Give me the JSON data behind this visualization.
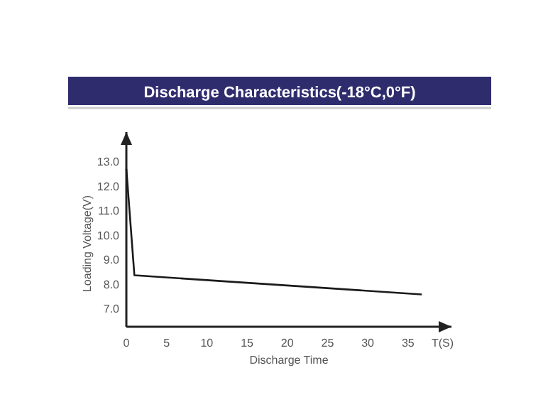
{
  "chart_data": {
    "type": "line",
    "title": "Discharge Characteristics(-18°C,0°F)",
    "xlabel": "Discharge Time",
    "ylabel": "Loading Voltage(V)",
    "annotations": [
      "T(S)"
    ],
    "x": [
      0,
      1,
      36.7
    ],
    "series": [
      {
        "color": "#1a1a1a",
        "values": [
          12.7,
          8.36,
          7.58
        ]
      }
    ],
    "xlim": [
      0,
      40.4
    ],
    "xticks": [
      0,
      5,
      10,
      15,
      20,
      25,
      30,
      35
    ],
    "ylim": [
      6.26,
      14.2
    ],
    "yticks": [
      {
        "value": 7,
        "label": "7.0"
      },
      {
        "value": 8,
        "label": "8.0"
      },
      {
        "value": 9,
        "label": "9.0"
      },
      {
        "value": 10,
        "label": "10.0"
      },
      {
        "value": 11,
        "label": "11.0"
      },
      {
        "value": 12,
        "label": "12.0"
      },
      {
        "value": 13,
        "label": "13.0"
      }
    ],
    "grid": false,
    "marker": "none",
    "line_style": "solid"
  }
}
